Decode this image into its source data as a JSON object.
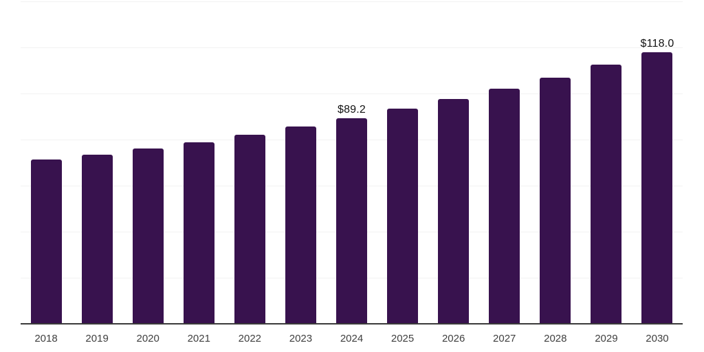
{
  "chart_data": {
    "type": "bar",
    "title": "",
    "categories": [
      "2018",
      "2019",
      "2020",
      "2021",
      "2022",
      "2023",
      "2024",
      "2025",
      "2026",
      "2027",
      "2028",
      "2029",
      "2030"
    ],
    "values": [
      71.2,
      73.4,
      76.2,
      78.9,
      82.0,
      85.7,
      89.2,
      93.3,
      97.5,
      102.1,
      106.9,
      112.4,
      118.0
    ],
    "data_labels": [
      "",
      "",
      "",
      "",
      "",
      "",
      "$89.2",
      "",
      "",
      "",
      "",
      "",
      "$118.0"
    ],
    "xlabel": "",
    "ylabel": "",
    "ylim": [
      0,
      140
    ],
    "grid_step": 20,
    "grid": true,
    "legend": false,
    "colors": {
      "bar": "#38124e",
      "gridline": "#f2f2f2",
      "axis_line": "#3a3a3a",
      "tick_label": "#3f3f3f",
      "data_label": "#111111",
      "background": "#ffffff"
    }
  }
}
